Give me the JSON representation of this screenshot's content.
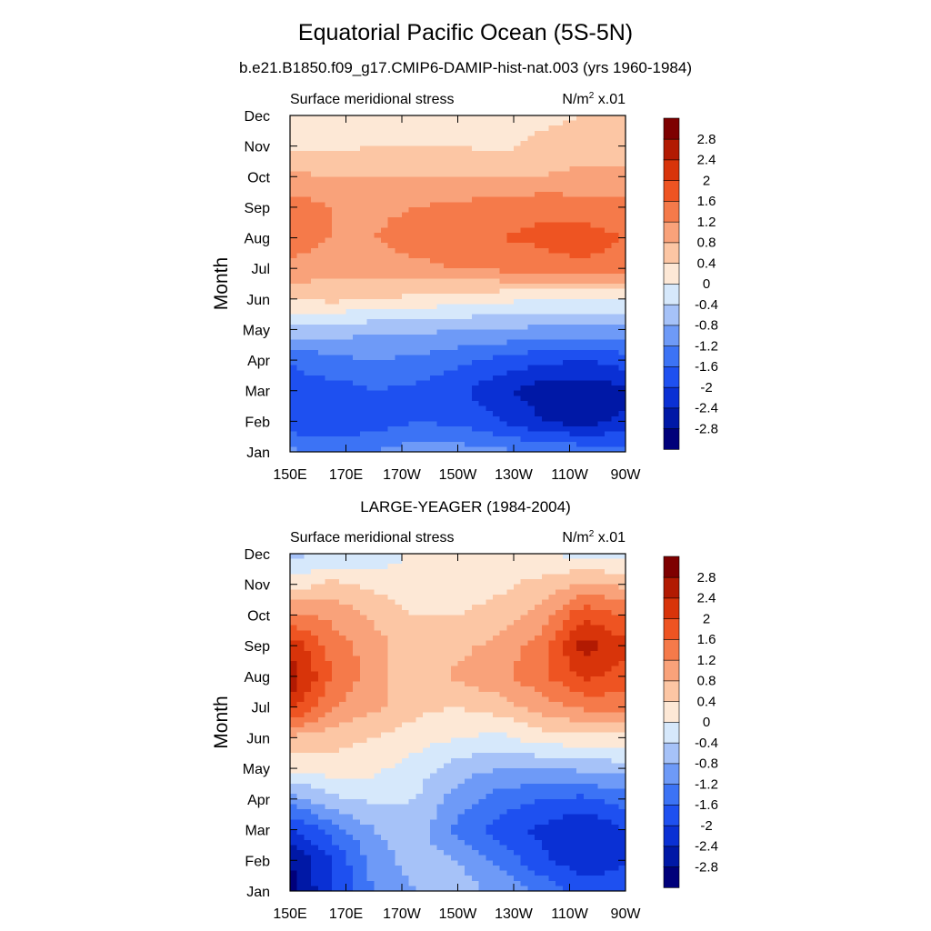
{
  "figure": {
    "title": "Equatorial Pacific Ocean (5S-5N)",
    "subtitle": "b.e21.B1850.f09_g17.CMIP6-DAMIP-hist-nat.003 (yrs 1960-1984)",
    "panel2_title": "LARGE-YEAGER (1984-2004)"
  },
  "chart_data": [
    {
      "type": "heatmap",
      "left_label": "Surface meridional stress",
      "units": "N/m",
      "units_sup": "2",
      "units_suffix": " x.01",
      "ylabel": "Month",
      "x_ticks": [
        "150E",
        "170E",
        "170W",
        "150W",
        "130W",
        "110W",
        "90W"
      ],
      "x_values": [
        150,
        170,
        190,
        210,
        230,
        250,
        270
      ],
      "y_ticks": [
        "Jan",
        "Feb",
        "Mar",
        "Apr",
        "May",
        "Jun",
        "Jul",
        "Aug",
        "Sep",
        "Oct",
        "Nov",
        "Dec"
      ],
      "colorbar_labels": [
        "2.8",
        "2.4",
        "2",
        "1.6",
        "1.2",
        "0.8",
        "0.4",
        "0",
        "-0.4",
        "-0.8",
        "-1.2",
        "-1.6",
        "-2",
        "-2.4",
        "-2.8"
      ],
      "levels": [
        -2.8,
        -2.4,
        -2.0,
        -1.6,
        -1.2,
        -0.8,
        -0.4,
        0,
        0.4,
        0.8,
        1.2,
        1.6,
        2.0,
        2.4,
        2.8
      ],
      "grid": [
        [
          -1.1,
          -1.3,
          -1.2,
          -1.0,
          -1.0,
          -1.1,
          -1.2,
          -1.3,
          -1.4
        ],
        [
          -1.9,
          -2.0,
          -1.8,
          -1.6,
          -1.7,
          -2.0,
          -2.4,
          -2.6,
          -2.3
        ],
        [
          -1.7,
          -1.8,
          -1.6,
          -1.7,
          -1.9,
          -2.3,
          -2.6,
          -2.7,
          -2.5
        ],
        [
          -1.6,
          -1.3,
          -1.2,
          -1.3,
          -1.5,
          -1.7,
          -1.9,
          -2.0,
          -1.8
        ],
        [
          -0.5,
          -0.6,
          -0.7,
          -0.7,
          -0.8,
          -0.8,
          -0.9,
          -0.9,
          -0.9
        ],
        [
          0.4,
          0.5,
          0.4,
          0.3,
          0.2,
          0.1,
          0.0,
          0.0,
          0.0
        ],
        [
          1.1,
          1.0,
          1.0,
          1.1,
          1.2,
          1.3,
          1.4,
          1.5,
          1.4
        ],
        [
          1.4,
          1.2,
          1.2,
          1.4,
          1.5,
          1.6,
          1.7,
          1.8,
          1.6
        ],
        [
          1.4,
          1.2,
          1.1,
          1.2,
          1.3,
          1.4,
          1.5,
          1.4,
          1.3
        ],
        [
          0.9,
          0.8,
          0.8,
          0.8,
          0.8,
          0.8,
          0.8,
          0.9,
          0.9
        ],
        [
          0.3,
          0.3,
          0.4,
          0.4,
          0.4,
          0.3,
          0.5,
          0.6,
          0.6
        ],
        [
          0.2,
          0.2,
          0.2,
          0.2,
          0.3,
          0.3,
          0.3,
          0.4,
          0.4
        ]
      ]
    },
    {
      "type": "heatmap",
      "left_label": "Surface meridional stress",
      "units": "N/m",
      "units_sup": "2",
      "units_suffix": " x.01",
      "ylabel": "Month",
      "x_ticks": [
        "150E",
        "170E",
        "170W",
        "150W",
        "130W",
        "110W",
        "90W"
      ],
      "x_values": [
        150,
        170,
        190,
        210,
        230,
        250,
        270
      ],
      "y_ticks": [
        "Jan",
        "Feb",
        "Mar",
        "Apr",
        "May",
        "Jun",
        "Jul",
        "Aug",
        "Sep",
        "Oct",
        "Nov",
        "Dec"
      ],
      "colorbar_labels": [
        "2.8",
        "2.4",
        "2",
        "1.6",
        "1.2",
        "0.8",
        "0.4",
        "0",
        "-0.4",
        "-0.8",
        "-1.2",
        "-1.6",
        "-2",
        "-2.4",
        "-2.8"
      ],
      "levels": [
        -2.8,
        -2.4,
        -2.0,
        -1.6,
        -1.2,
        -0.8,
        -0.4,
        0,
        0.4,
        0.8,
        1.2,
        1.6,
        2.0,
        2.4,
        2.8
      ],
      "grid": [
        [
          -3.0,
          -2.0,
          -1.2,
          -0.8,
          -0.6,
          -0.9,
          -1.3,
          -1.8,
          -1.6
        ],
        [
          -2.8,
          -2.0,
          -1.0,
          -0.6,
          -0.8,
          -1.3,
          -1.9,
          -2.3,
          -2.1
        ],
        [
          -2.1,
          -1.4,
          -0.8,
          -0.6,
          -1.3,
          -1.8,
          -2.1,
          -2.4,
          -2.0
        ],
        [
          -1.0,
          -0.5,
          -0.3,
          -0.4,
          -1.0,
          -1.4,
          -1.6,
          -1.7,
          -1.4
        ],
        [
          0.1,
          0.2,
          0.1,
          -0.2,
          -0.6,
          -0.8,
          -0.8,
          -0.7,
          -0.6
        ],
        [
          0.7,
          0.6,
          0.4,
          0.2,
          0.0,
          -0.1,
          0.2,
          0.3,
          0.3
        ],
        [
          2.2,
          1.2,
          0.9,
          0.5,
          0.4,
          0.6,
          1.0,
          1.3,
          1.4
        ],
        [
          2.7,
          1.6,
          1.0,
          0.5,
          0.9,
          1.1,
          1.5,
          2.1,
          1.8
        ],
        [
          2.3,
          1.4,
          1.0,
          0.5,
          0.7,
          0.9,
          1.4,
          2.6,
          2.1
        ],
        [
          1.3,
          1.1,
          0.7,
          0.4,
          0.4,
          0.6,
          1.0,
          1.9,
          1.6
        ],
        [
          0.2,
          0.5,
          0.3,
          0.1,
          0.1,
          0.3,
          0.5,
          0.9,
          0.7
        ],
        [
          -0.5,
          -0.4,
          -0.3,
          0.1,
          0.3,
          0.4,
          0.1,
          -0.2,
          -0.1
        ]
      ]
    }
  ],
  "colors": {
    "bands": [
      "#00007a",
      "#0018a6",
      "#0a30d4",
      "#1e50f0",
      "#3c73f5",
      "#6e9af7",
      "#a6c2f8",
      "#d6e8fb",
      "#fde8d6",
      "#fcc6a4",
      "#f9a27a",
      "#f57a4a",
      "#ee5422",
      "#d8340a",
      "#b21a02",
      "#7e0000"
    ]
  }
}
